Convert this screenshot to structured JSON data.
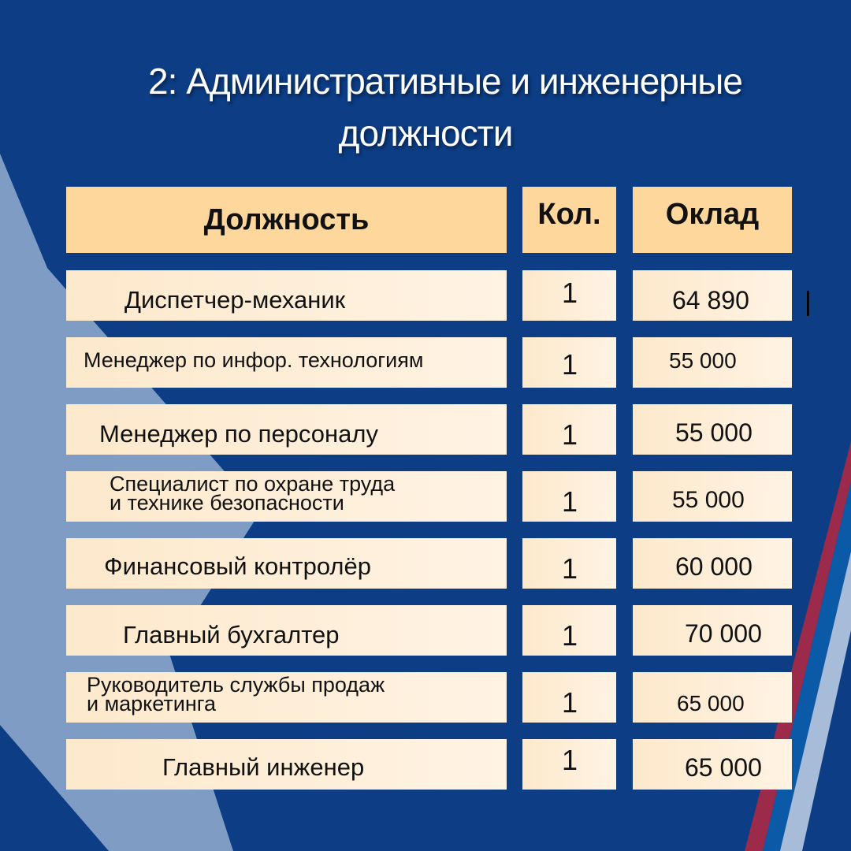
{
  "title": {
    "line1": "2: Административные и инженерные",
    "line2": "должности"
  },
  "table": {
    "headers": [
      "Должность",
      "Кол.",
      "Оклад"
    ],
    "rows": [
      {
        "position": "Диспетчер-механик",
        "count": "1",
        "salary": "64 890"
      },
      {
        "position": "Менеджер по инфор. технологиям",
        "count": "1",
        "salary": "55 000"
      },
      {
        "position": "Менеджер по персоналу",
        "count": "1",
        "salary": "55 000"
      },
      {
        "position_line1": "Специалист по охране труда",
        "position_line2": "и технике безопасности",
        "count": "1",
        "salary": "55 000"
      },
      {
        "position": "Финансовый контролёр",
        "count": "1",
        "salary": "60 000"
      },
      {
        "position": "Главный бухгалтер",
        "count": "1",
        "salary": "70 000"
      },
      {
        "position_line1": "Руководитель службы продаж",
        "position_line2": "и маркетинга",
        "count": "1",
        "salary": "65 000"
      },
      {
        "position": "Главный инженер",
        "count": "1",
        "salary": "65 000"
      }
    ]
  },
  "stray_mark": "|",
  "colors": {
    "background": "#0c3d85",
    "header_cell": "#fed79c",
    "body_cell": "#fdeccf",
    "stripe_red": "#9b2a4b",
    "stripe_blue": "#0b5aa8",
    "stripe_light": "#a7bcd9"
  }
}
